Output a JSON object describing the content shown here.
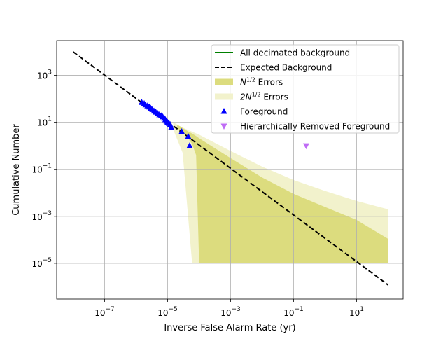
{
  "chart_data": {
    "type": "scatter",
    "xlabel": "Inverse False Alarm Rate (yr)",
    "ylabel": "Cumulative Number",
    "x_scale": "log",
    "y_scale": "log",
    "xlim": [
      3e-09,
      300
    ],
    "ylim": [
      3e-07,
      30000
    ],
    "x_ticks": [
      {
        "value": 1e-07,
        "base": "10",
        "exp": "−7"
      },
      {
        "value": 1e-05,
        "base": "10",
        "exp": "−5"
      },
      {
        "value": 0.001,
        "base": "10",
        "exp": "−3"
      },
      {
        "value": 0.1,
        "base": "10",
        "exp": "−1"
      },
      {
        "value": 10,
        "base": "10",
        "exp": "1"
      }
    ],
    "y_ticks": [
      {
        "value": 1e-05,
        "base": "10",
        "exp": "−5"
      },
      {
        "value": 0.001,
        "base": "10",
        "exp": "−3"
      },
      {
        "value": 0.1,
        "base": "10",
        "exp": "−1"
      },
      {
        "value": 10,
        "base": "10",
        "exp": "1"
      },
      {
        "value": 1000,
        "base": "10",
        "exp": "3"
      }
    ],
    "grid": true,
    "legend_position": "upper-right",
    "legend": [
      {
        "key": "all_bg",
        "label": "All decimated background",
        "kind": "line",
        "color": "#008000"
      },
      {
        "key": "expected",
        "label": "Expected Background",
        "kind": "dashed",
        "color": "#000000"
      },
      {
        "key": "err1",
        "label": "Errors",
        "prefix": "N",
        "sup": "1/2",
        "kind": "patch",
        "color": "#dcdc7e"
      },
      {
        "key": "err2",
        "label": "Errors",
        "prefix": "2N",
        "sup": "1/2",
        "kind": "patch",
        "color": "#f2f2cc"
      },
      {
        "key": "fg",
        "label": "Foreground",
        "kind": "triangle-up",
        "color": "#0000ff"
      },
      {
        "key": "hr",
        "label": "Hierarchically Removed Foreground",
        "kind": "triangle-down",
        "color": "#bf6cf5"
      }
    ],
    "expected_background": {
      "x": [
        1e-08,
        100
      ],
      "y": [
        10000,
        1.2e-06
      ]
    },
    "error_1sigma": {
      "x": [
        2e-05,
        4e-05,
        6e-05,
        8e-05,
        0.0001,
        0.001,
        0.01,
        0.1,
        1.0,
        10,
        100
      ],
      "upper": [
        8.0,
        4.5,
        3.3,
        2.6,
        2.1,
        0.3,
        0.045,
        0.009,
        0.0025,
        0.0007,
        0.00011
      ],
      "lower": [
        6.0,
        2.5,
        1.2,
        0.4,
        1e-05,
        1e-05,
        1e-05,
        1e-05,
        1e-05,
        1e-05,
        1e-05
      ]
    },
    "error_2sigma": {
      "x": [
        1.5e-05,
        3e-05,
        6e-05,
        0.0001,
        0.001,
        0.01,
        0.1,
        1.0,
        10,
        100
      ],
      "upper": [
        10.0,
        6.0,
        4.0,
        3.0,
        0.6,
        0.13,
        0.035,
        0.012,
        0.0045,
        0.002
      ],
      "lower": [
        5.0,
        0.5,
        1e-05,
        1e-05,
        1e-05,
        1e-05,
        1e-05,
        1e-05,
        1e-05,
        1e-05
      ]
    },
    "foreground": {
      "x": [
        1.5e-06,
        1.8e-06,
        2e-06,
        2.3e-06,
        2.6e-06,
        2.9e-06,
        3.3e-06,
        3.7e-06,
        4.2e-06,
        4.8e-06,
        5.5e-06,
        6.2e-06,
        7e-06,
        7.8e-06,
        8.5e-06,
        9.3e-06,
        1e-05,
        1.1e-05,
        1.2e-05,
        1.3e-05,
        2.8e-05,
        4.5e-05,
        5e-05
      ],
      "y": [
        70,
        62,
        55,
        50,
        45,
        40,
        35,
        30,
        27,
        24,
        21,
        19,
        17,
        15,
        13,
        11,
        10,
        9,
        8,
        6,
        4,
        2.5,
        1
      ]
    },
    "hierarchically_removed": {
      "x": [
        0.25
      ],
      "y": [
        1
      ]
    }
  }
}
